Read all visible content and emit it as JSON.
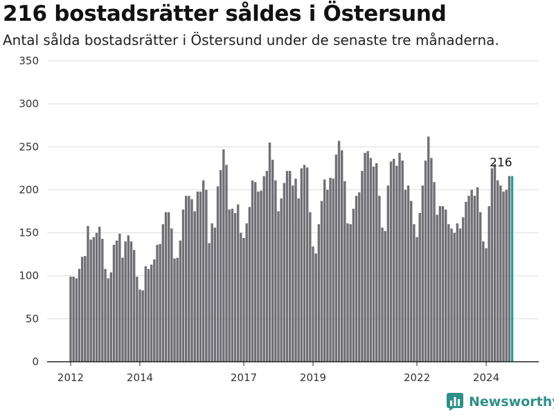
{
  "chart_data": {
    "type": "bar",
    "title": "216 bostadsrätter såldes i Östersund",
    "subtitle": "Antal sålda bostadsrätter i Östersund under de senaste tre månaderna.",
    "xlabel": "",
    "ylabel": "",
    "ylim": [
      0,
      350
    ],
    "yticks": [
      0,
      50,
      100,
      150,
      200,
      250,
      300,
      350
    ],
    "xticks": [
      "2012",
      "2014",
      "2017",
      "2019",
      "2022",
      "2024"
    ],
    "grid": true,
    "legend": "none",
    "x_start": "2012-01",
    "frequency": "monthly",
    "values": [
      99,
      99,
      97,
      108,
      122,
      123,
      158,
      142,
      145,
      150,
      157,
      143,
      108,
      97,
      104,
      136,
      141,
      149,
      121,
      140,
      147,
      140,
      130,
      99,
      84,
      83,
      111,
      108,
      113,
      119,
      136,
      137,
      160,
      174,
      174,
      155,
      120,
      121,
      141,
      177,
      193,
      193,
      189,
      175,
      198,
      198,
      211,
      200,
      138,
      161,
      156,
      204,
      223,
      247,
      229,
      177,
      178,
      173,
      183,
      150,
      144,
      161,
      180,
      211,
      209,
      198,
      199,
      216,
      222,
      255,
      235,
      211,
      175,
      190,
      208,
      222,
      222,
      205,
      213,
      190,
      225,
      229,
      226,
      174,
      134,
      126,
      160,
      187,
      212,
      200,
      214,
      213,
      241,
      257,
      246,
      210,
      161,
      160,
      178,
      193,
      197,
      222,
      243,
      245,
      237,
      227,
      231,
      193,
      156,
      152,
      205,
      233,
      236,
      228,
      243,
      234,
      200,
      205,
      187,
      160,
      145,
      173,
      205,
      234,
      262,
      237,
      209,
      171,
      181,
      181,
      177,
      160,
      155,
      150,
      161,
      155,
      168,
      186,
      193,
      200,
      193,
      203,
      174,
      140,
      132,
      181,
      225,
      230,
      211,
      205,
      198,
      200,
      216,
      216
    ],
    "highlight_last": true,
    "last_value_label": "216",
    "bar_color": "#6f6f75",
    "highlight_color": "#2a9d8f",
    "grid_color": "#dcdcdc"
  },
  "brand": {
    "name": "Newsworthy",
    "color": "#2f8f87",
    "icon": "bar-chart-logo-icon"
  }
}
